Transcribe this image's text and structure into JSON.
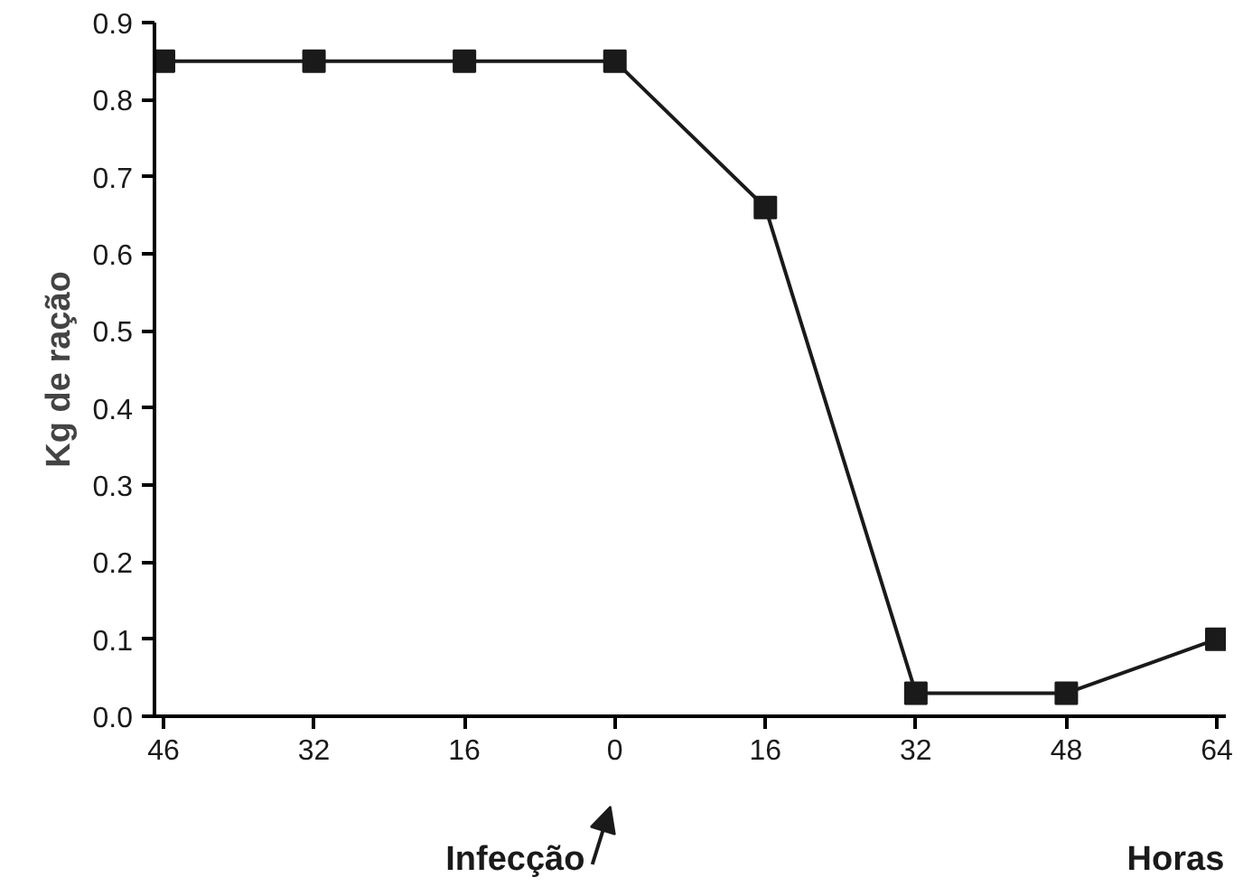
{
  "chart_data": {
    "type": "line",
    "ylabel": "Kg de ração",
    "categories": [
      "46",
      "32",
      "16",
      "0",
      "16",
      "32",
      "48",
      "64"
    ],
    "series": [
      {
        "color": "#1a1a1a",
        "values": [
          0.85,
          0.85,
          0.85,
          0.85,
          0.66,
          0.03,
          0.03,
          0.1
        ]
      }
    ],
    "ylim": [
      0,
      0.9
    ],
    "yticks": [
      {
        "value": 0,
        "label": "0.0"
      },
      {
        "value": 0.1,
        "label": "0.1"
      },
      {
        "value": 0.2,
        "label": "0.2"
      },
      {
        "value": 0.3,
        "label": "0.3"
      },
      {
        "value": 0.4,
        "label": "0.4"
      },
      {
        "value": 0.5,
        "label": "0.5"
      },
      {
        "value": 0.6,
        "label": "0.6"
      },
      {
        "value": 0.7,
        "label": "0.7"
      },
      {
        "value": 0.8,
        "label": "0.8"
      },
      {
        "value": 0.9,
        "label": "0.9"
      }
    ],
    "grid": false,
    "marker": "square",
    "line_style": "solid",
    "annotations": [
      "Infecção",
      "Horas"
    ]
  }
}
